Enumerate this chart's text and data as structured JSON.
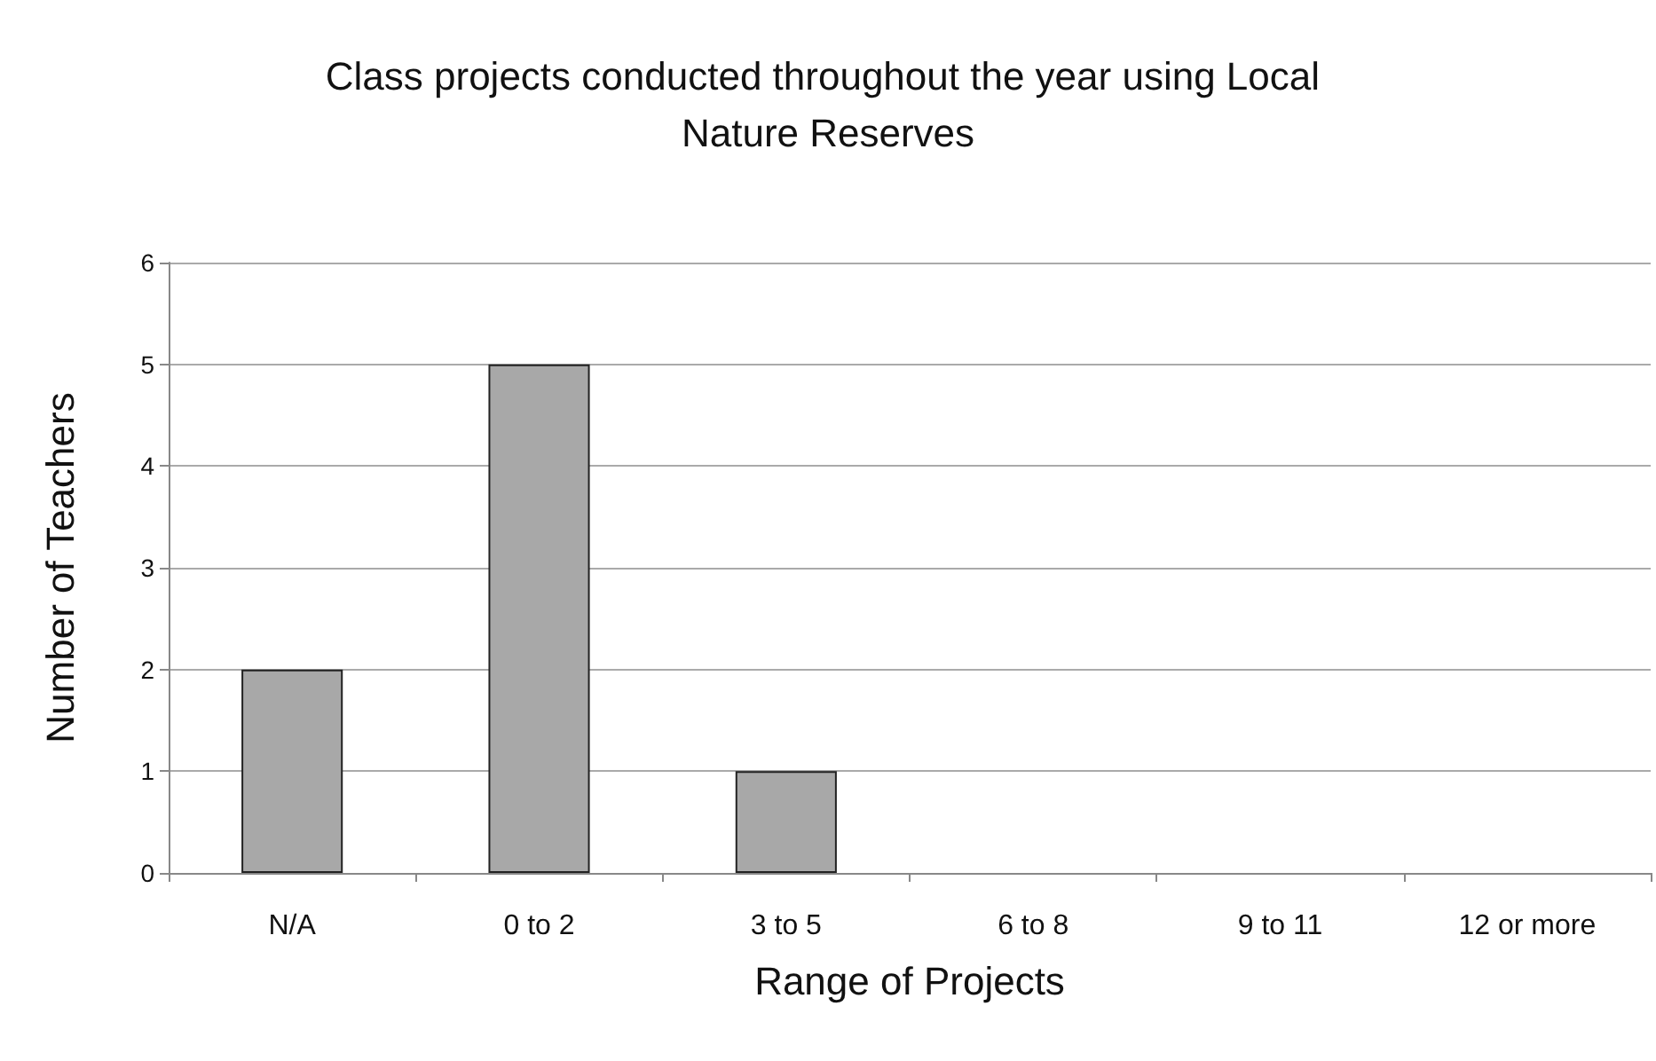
{
  "chart_data": {
    "type": "bar",
    "title": "Class projects conducted throughout the year using Local Nature Reserves",
    "xlabel": "Range of Projects",
    "ylabel": "Number of Teachers",
    "categories": [
      "N/A",
      "0 to 2",
      "3 to 5",
      "6 to 8",
      "9 to 11",
      "12 or more"
    ],
    "values": [
      2,
      5,
      1,
      0,
      0,
      0
    ],
    "color": "#a8a8a8",
    "ylim": [
      0,
      6
    ],
    "yticks": [
      0,
      1,
      2,
      3,
      4,
      5,
      6
    ],
    "grid": "y"
  }
}
